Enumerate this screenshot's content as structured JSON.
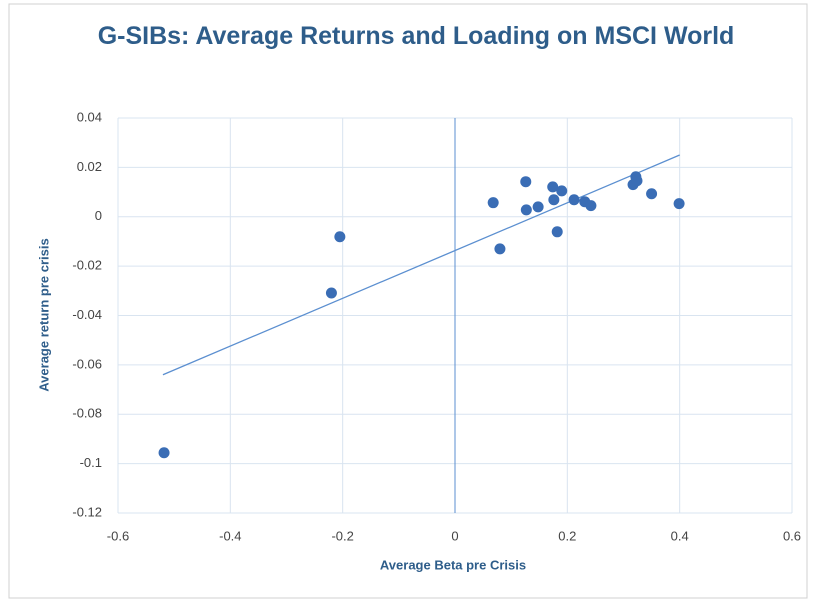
{
  "chart_data": {
    "type": "scatter",
    "title": "G-SIBs: Average Returns and Loading on MSCI World",
    "x_label": "Average Beta pre Crisis",
    "y_label": "Average return pre crisis",
    "color": "#3a6db5",
    "x": [
      -0.518,
      -0.22,
      -0.205,
      0.068,
      0.08,
      0.126,
      0.127,
      0.148,
      0.174,
      0.176,
      0.182,
      0.19,
      0.212,
      0.231,
      0.242,
      0.317,
      0.322,
      0.324,
      0.35,
      0.399
    ],
    "y": [
      -0.0956,
      -0.0309,
      -0.0081,
      0.0057,
      -0.013,
      0.0142,
      0.0028,
      0.004,
      0.0121,
      0.0069,
      -0.0061,
      0.0105,
      0.0069,
      0.0061,
      0.0045,
      0.013,
      0.0162,
      0.0146,
      0.0093,
      0.0053
    ],
    "trendline": {
      "color": "#5b8fd0",
      "x": [
        -0.52,
        0.4
      ],
      "y": [
        -0.064,
        0.025
      ]
    },
    "xlim": [
      -0.6,
      0.6
    ],
    "xticks": [
      -0.6,
      -0.4,
      -0.2,
      0,
      0.2,
      0.4,
      0.6
    ],
    "ylim": [
      -0.12,
      0.04
    ],
    "yticks": [
      -0.12,
      -0.1,
      -0.08,
      -0.06,
      -0.04,
      -0.02,
      0,
      0.02,
      0.04
    ],
    "grid": true
  }
}
